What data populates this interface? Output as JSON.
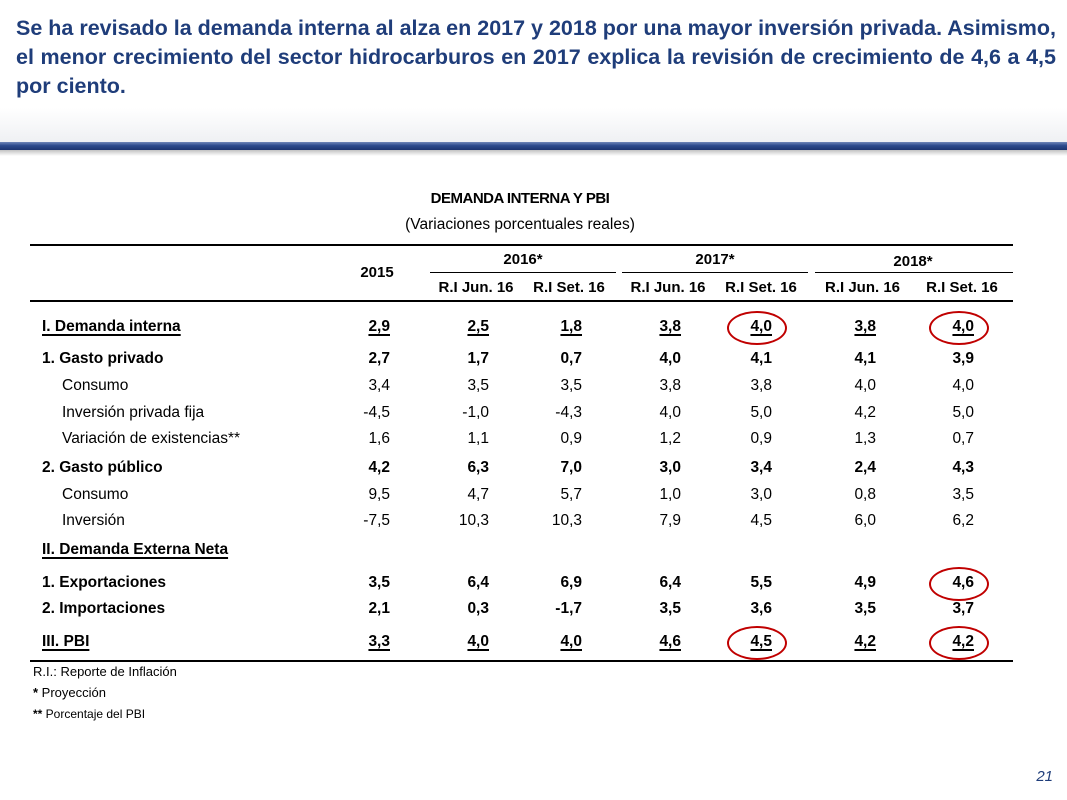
{
  "headline": "Se ha revisado la demanda interna al alza en 2017 y 2018 por una mayor inversión privada. Asimismo, el menor crecimiento del sector hidrocarburos en 2017 explica la revisión de crecimiento de 4,6 a 4,5 por ciento.",
  "table": {
    "title": "DEMANDA INTERNA Y PBI",
    "subtitle": "(Variaciones porcentuales reales)",
    "year_headers": {
      "y2015": "2015",
      "y2016": "2016*",
      "y2017": "2017*",
      "y2018": "2018*"
    },
    "sub_headers": [
      "R.I Jun. 16",
      "R.I Set. 16",
      "R.I Jun. 16",
      "R.I Set. 16",
      "R.I Jun. 16",
      "R.I Set. 16"
    ],
    "rows": [
      {
        "label": "I. Demanda interna",
        "values": [
          "2,9",
          "2,5",
          "1,8",
          "3,8",
          "4,0",
          "3,8",
          "4,0"
        ]
      },
      {
        "label": "1. Gasto privado",
        "values": [
          "2,7",
          "1,7",
          "0,7",
          "4,0",
          "4,1",
          "4,1",
          "3,9"
        ]
      },
      {
        "label": "Consumo",
        "values": [
          "3,4",
          "3,5",
          "3,5",
          "3,8",
          "3,8",
          "4,0",
          "4,0"
        ]
      },
      {
        "label": "Inversión privada fija",
        "values": [
          "-4,5",
          "-1,0",
          "-4,3",
          "4,0",
          "5,0",
          "4,2",
          "5,0"
        ]
      },
      {
        "label": "Variación de existencias**",
        "values": [
          "1,6",
          "1,1",
          "0,9",
          "1,2",
          "0,9",
          "1,3",
          "0,7"
        ]
      },
      {
        "label": "2. Gasto público",
        "values": [
          "4,2",
          "6,3",
          "7,0",
          "3,0",
          "3,4",
          "2,4",
          "4,3"
        ]
      },
      {
        "label": "Consumo",
        "values": [
          "9,5",
          "4,7",
          "5,7",
          "1,0",
          "3,0",
          "0,8",
          "3,5"
        ]
      },
      {
        "label": "Inversión",
        "values": [
          "-7,5",
          "10,3",
          "10,3",
          "7,9",
          "4,5",
          "6,0",
          "6,2"
        ]
      },
      {
        "label": "II. Demanda Externa Neta",
        "values": []
      },
      {
        "label": "1. Exportaciones",
        "values": [
          "3,5",
          "6,4",
          "6,9",
          "6,4",
          "5,5",
          "4,9",
          "4,6"
        ]
      },
      {
        "label": "2. Importaciones",
        "values": [
          "2,1",
          "0,3",
          "-1,7",
          "3,5",
          "3,6",
          "3,5",
          "3,7"
        ]
      },
      {
        "label": "III. PBI",
        "values": [
          "3,3",
          "4,0",
          "4,0",
          "4,6",
          "4,5",
          "4,2",
          "4,2"
        ]
      }
    ],
    "highlight_color": "#c00000"
  },
  "notes": {
    "ri": "R.I.: Reporte de Inflación",
    "proy_mark": "*",
    "proy": " Proyección",
    "pbi_mark": "**",
    "pbi": " Porcentaje del PBI"
  },
  "page_number": "21",
  "colors": {
    "headline": "#1f3d7a",
    "rule": "#2c4a8c"
  }
}
